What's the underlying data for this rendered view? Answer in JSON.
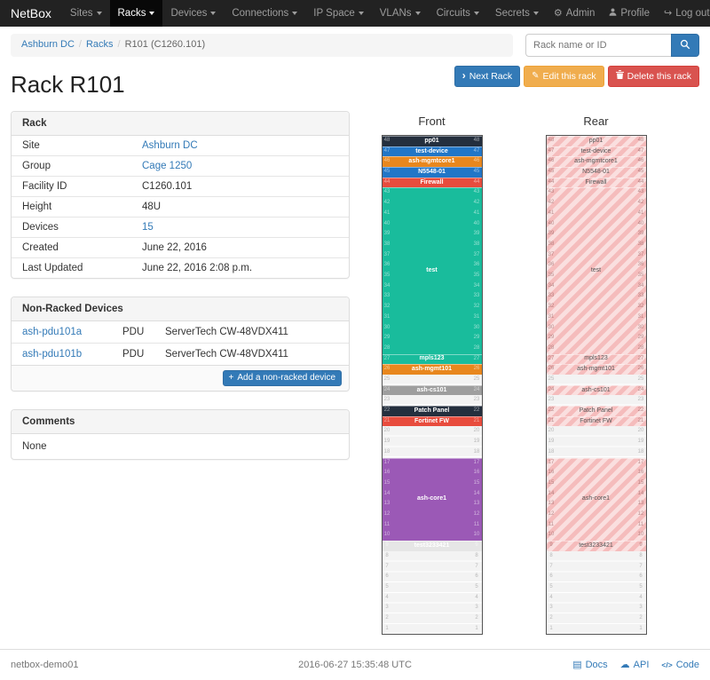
{
  "navbar": {
    "brand": "NetBox",
    "items": [
      {
        "label": "Sites"
      },
      {
        "label": "Racks",
        "active": true
      },
      {
        "label": "Devices"
      },
      {
        "label": "Connections"
      },
      {
        "label": "IP Space"
      },
      {
        "label": "VLANs"
      },
      {
        "label": "Circuits"
      },
      {
        "label": "Secrets"
      }
    ],
    "right": [
      {
        "label": "Admin",
        "icon": "gear"
      },
      {
        "label": "Profile",
        "icon": "user"
      },
      {
        "label": "Log out",
        "icon": "logout"
      }
    ]
  },
  "breadcrumb": {
    "items": [
      {
        "label": "Ashburn DC",
        "link": true
      },
      {
        "label": "Racks",
        "link": true
      },
      {
        "label": "R101 (C1260.101)",
        "link": false
      }
    ]
  },
  "search": {
    "placeholder": "Rack name or ID"
  },
  "actions": {
    "next": "Next Rack",
    "edit": "Edit this rack",
    "delete": "Delete this rack"
  },
  "page_title": "Rack R101",
  "rack_panel": {
    "title": "Rack",
    "rows": [
      {
        "label": "Site",
        "value": "Ashburn DC",
        "link": true
      },
      {
        "label": "Group",
        "value": "Cage 1250",
        "link": true
      },
      {
        "label": "Facility ID",
        "value": "C1260.101",
        "link": false
      },
      {
        "label": "Height",
        "value": "48U",
        "link": false
      },
      {
        "label": "Devices",
        "value": "15",
        "link": true
      },
      {
        "label": "Created",
        "value": "June 22, 2016",
        "link": false
      },
      {
        "label": "Last Updated",
        "value": "June 22, 2016 2:08 p.m.",
        "link": false
      }
    ]
  },
  "nonracked_panel": {
    "title": "Non-Racked Devices",
    "devices": [
      {
        "name": "ash-pdu101a",
        "role": "PDU",
        "type": "ServerTech CW-48VDX411"
      },
      {
        "name": "ash-pdu101b",
        "role": "PDU",
        "type": "ServerTech CW-48VDX411"
      }
    ],
    "add_button": "Add a non-racked device"
  },
  "comments_panel": {
    "title": "Comments",
    "body": "None"
  },
  "elevations": {
    "front_title": "Front",
    "rear_title": "Rear",
    "units": 48,
    "blocks": [
      {
        "label": "pp01",
        "units": 1,
        "color": "#242f3e"
      },
      {
        "label": "test-device",
        "units": 1,
        "color": "#2176c7"
      },
      {
        "label": "ash-mgmtcore1",
        "units": 1,
        "color": "#e8871e"
      },
      {
        "label": "N5548-01",
        "units": 1,
        "color": "#2176c7"
      },
      {
        "label": "Firewall",
        "units": 1,
        "color": "#e84c3d"
      },
      {
        "label": "test",
        "units": 16,
        "color": "#19bc9c"
      },
      {
        "label": "mpls123",
        "units": 1,
        "color": "#19bc9c"
      },
      {
        "label": "ash-mgmt101",
        "units": 1,
        "color": "#e8871e"
      },
      {
        "label": "",
        "units": 1,
        "empty": true
      },
      {
        "label": "ash-cs101",
        "units": 1,
        "color": "#9e9e9e"
      },
      {
        "label": "",
        "units": 1,
        "empty": true
      },
      {
        "label": "Patch Panel",
        "units": 1,
        "color": "#242f3e"
      },
      {
        "label": "Fortinet FW",
        "units": 1,
        "color": "#e84c3d"
      },
      {
        "label": "",
        "units": 3,
        "empty": true
      },
      {
        "label": "ash-core1",
        "units": 8,
        "color": "#9b59b6"
      },
      {
        "label": "test3233421",
        "units": 1,
        "color": "#e6e6e6"
      },
      {
        "label": "",
        "units": 8,
        "empty": true
      }
    ]
  },
  "footer": {
    "hostname": "netbox-demo01",
    "timestamp": "2016-06-27 15:35:48 UTC",
    "links": [
      {
        "label": "Docs",
        "icon": "docs"
      },
      {
        "label": "API",
        "icon": "cloud"
      },
      {
        "label": "Code",
        "icon": "code"
      }
    ]
  },
  "colors": {
    "accent": "#337ab7",
    "warning": "#f0ad4e",
    "danger": "#d9534f",
    "navbar_bg": "#222222",
    "navbar_active_bg": "#080808",
    "striped_occupied": "#f5bcbc"
  }
}
